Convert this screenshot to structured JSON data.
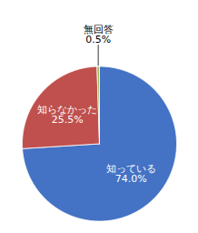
{
  "chart_data": {
    "type": "pie",
    "categories": [
      "知っている",
      "知らなかった",
      "無回答"
    ],
    "values": [
      74.0,
      25.5,
      0.5
    ],
    "value_labels": [
      "74.0%",
      "25.5%",
      "0.5%"
    ],
    "colors": [
      "#4472C4",
      "#C0504D",
      "#9BBB59"
    ],
    "data_labels": true
  }
}
